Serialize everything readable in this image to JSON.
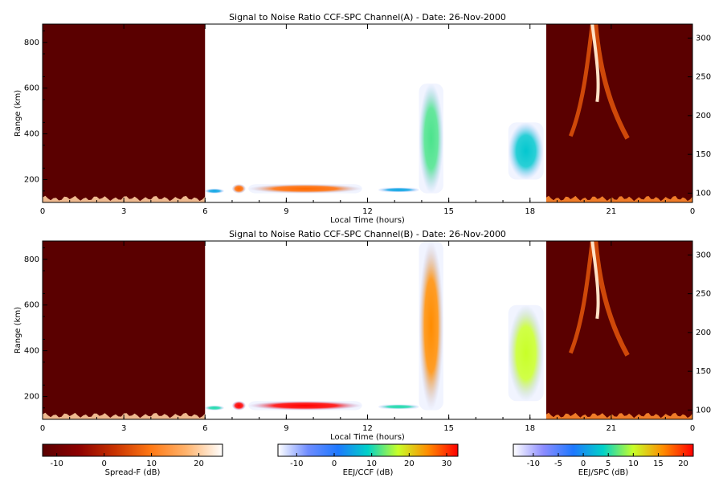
{
  "chart_data": {
    "type": "heatmap",
    "panels": [
      {
        "title": "Signal to Noise Ratio CCF-SPC Channel(A) - Date: 26-Nov-2000",
        "xlabel": "Local Time (hours)",
        "ylabel": "Range (km)",
        "xlim": [
          0,
          24
        ],
        "x_ticks": [
          "0",
          "3",
          "6",
          "9",
          "12",
          "15",
          "18",
          "21",
          "0"
        ],
        "ylim": [
          100,
          880
        ],
        "y_ticks": [
          "200",
          "400",
          "600",
          "800"
        ],
        "y2lim": [
          88,
          318
        ],
        "y2_ticks": [
          "100",
          "150",
          "200",
          "250",
          "300"
        ],
        "regions": [
          {
            "mode": "Spread-F",
            "x": [
              0,
              6
            ],
            "range_km": [
              100,
              880
            ],
            "background_db": -13,
            "bottom_layer_db": 20
          },
          {
            "mode": "EEJ/CCF",
            "x": [
              6,
              18.6
            ],
            "blobs": [
              {
                "x": [
                  6.0,
                  6.7
                ],
                "range_km": [
                  140,
                  160
                ],
                "peak_db": 5
              },
              {
                "x": [
                  7.0,
                  7.5
                ],
                "range_km": [
                  140,
                  180
                ],
                "peak_db": 27
              },
              {
                "x": [
                  7.6,
                  11.8
                ],
                "range_km": [
                  140,
                  180
                ],
                "peak_db": 27
              },
              {
                "x": [
                  12.4,
                  13.9
                ],
                "range_km": [
                  145,
                  165
                ],
                "peak_db": 5
              },
              {
                "x": [
                  13.9,
                  14.8
                ],
                "range_km": [
                  140,
                  620
                ],
                "peak_db": 12
              },
              {
                "x": [
                  17.2,
                  18.5
                ],
                "range_km": [
                  200,
                  450
                ],
                "peak_db": 8
              }
            ]
          },
          {
            "mode": "Spread-F",
            "x": [
              18.6,
              24
            ],
            "range_km": [
              100,
              880
            ],
            "background_db": -13,
            "plume_peak_db": 22
          }
        ]
      },
      {
        "title": "Signal to Noise Ratio CCF-SPC Channel(B) - Date: 26-Nov-2000",
        "xlabel": "Local Time (hours)",
        "ylabel": "Range (km)",
        "xlim": [
          0,
          24
        ],
        "x_ticks": [
          "0",
          "3",
          "6",
          "9",
          "12",
          "15",
          "18",
          "21",
          "0"
        ],
        "ylim": [
          100,
          880
        ],
        "y_ticks": [
          "200",
          "400",
          "600",
          "800"
        ],
        "y2lim": [
          88,
          318
        ],
        "y2_ticks": [
          "100",
          "150",
          "200",
          "250",
          "300"
        ],
        "regions": [
          {
            "mode": "Spread-F",
            "x": [
              0,
              6
            ],
            "range_km": [
              100,
              880
            ],
            "background_db": -13,
            "bottom_layer_db": 20
          },
          {
            "mode": "EEJ/CCF",
            "x": [
              6,
              18.6
            ],
            "blobs": [
              {
                "x": [
                  6.0,
                  6.7
                ],
                "range_km": [
                  140,
                  160
                ],
                "peak_db": 5
              },
              {
                "x": [
                  7.0,
                  7.5
                ],
                "range_km": [
                  140,
                  180
                ],
                "peak_db": 27
              },
              {
                "x": [
                  7.6,
                  11.8
                ],
                "range_km": [
                  140,
                  180
                ],
                "peak_db": 27
              },
              {
                "x": [
                  12.4,
                  13.9
                ],
                "range_km": [
                  145,
                  165
                ],
                "peak_db": 5
              },
              {
                "x": [
                  13.9,
                  14.8
                ],
                "range_km": [
                  140,
                  880
                ],
                "peak_db": 16
              },
              {
                "x": [
                  17.2,
                  18.5
                ],
                "range_km": [
                  180,
                  600
                ],
                "peak_db": 10
              }
            ]
          },
          {
            "mode": "Spread-F",
            "x": [
              18.6,
              24
            ],
            "range_km": [
              100,
              880
            ],
            "background_db": -13,
            "plume_peak_db": 22
          }
        ]
      }
    ],
    "colorbars": [
      {
        "label": "Spread-F (dB)",
        "range": [
          -13,
          25
        ],
        "ticks": [
          "-10",
          "0",
          "10",
          "20"
        ],
        "colors": [
          "#5a0000",
          "#8c0000",
          "#c83200",
          "#ff7814",
          "#ffb46e",
          "#ffffff"
        ]
      },
      {
        "label": "EEJ/CCF (dB)",
        "range": [
          -15,
          33
        ],
        "ticks": [
          "-10",
          "0",
          "10",
          "20",
          "30"
        ],
        "colors": [
          "#ffffff",
          "#6e8cff",
          "#1e78ff",
          "#00d2c8",
          "#c8ff28",
          "#ff8c00",
          "#ff0000"
        ]
      },
      {
        "label": "EEJ/SPC (dB)",
        "range": [
          -14,
          22
        ],
        "ticks": [
          "-10",
          "-5",
          "0",
          "5",
          "10",
          "15",
          "20"
        ],
        "colors": [
          "#ffffff",
          "#8c8cff",
          "#1e78ff",
          "#00d2c8",
          "#c8ff28",
          "#ff8c00",
          "#ff0000"
        ]
      }
    ]
  }
}
